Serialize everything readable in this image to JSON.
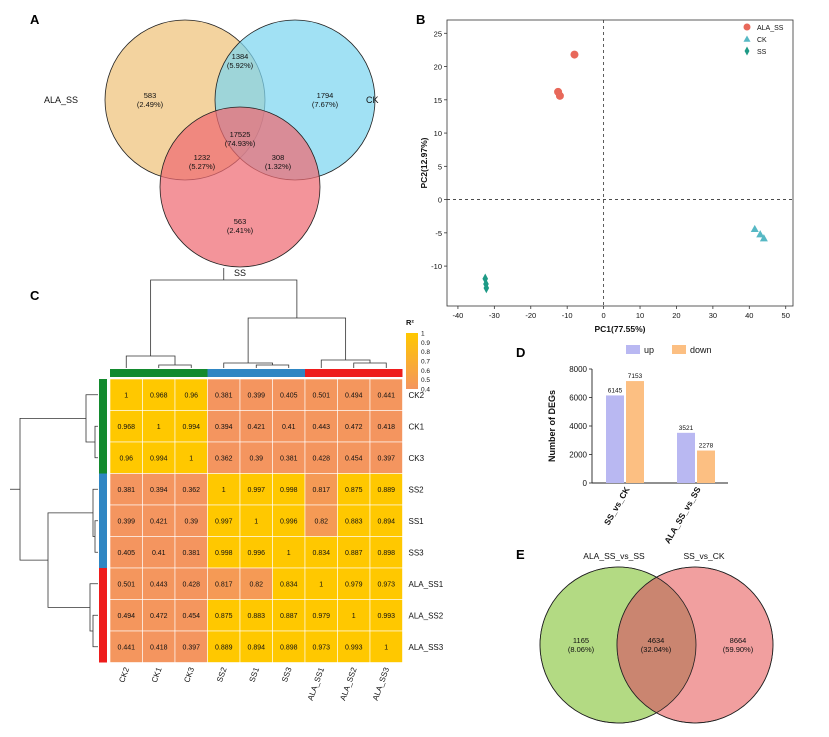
{
  "panels": {
    "A": "A",
    "B": "B",
    "C": "C",
    "D": "D",
    "E": "E"
  },
  "chart_data": [
    {
      "panel": "A",
      "type": "venn",
      "sets": [
        {
          "name": "ALA_SS",
          "color": "#EFC27A"
        },
        {
          "name": "CK",
          "color": "#7DD6F0"
        },
        {
          "name": "SS",
          "color": "#EE6B73"
        }
      ],
      "regions": [
        {
          "sets": [
            "ALA_SS"
          ],
          "count": "583",
          "pct": "(2.49%)"
        },
        {
          "sets": [
            "CK"
          ],
          "count": "1794",
          "pct": "(7.67%)"
        },
        {
          "sets": [
            "SS"
          ],
          "count": "563",
          "pct": "(2.41%)"
        },
        {
          "sets": [
            "ALA_SS",
            "CK"
          ],
          "count": "1384",
          "pct": "(5.92%)"
        },
        {
          "sets": [
            "ALA_SS",
            "SS"
          ],
          "count": "1232",
          "pct": "(5.27%)"
        },
        {
          "sets": [
            "CK",
            "SS"
          ],
          "count": "308",
          "pct": "(1.32%)"
        },
        {
          "sets": [
            "ALA_SS",
            "CK",
            "SS"
          ],
          "count": "17525",
          "pct": "(74.93%)"
        }
      ]
    },
    {
      "panel": "B",
      "type": "scatter",
      "xlabel": "PC1(77.55%)",
      "ylabel": "PC2(12.97%)",
      "xlim": [
        -43,
        52
      ],
      "ylim": [
        -16,
        27
      ],
      "xticks": [
        -40,
        -30,
        -20,
        -10,
        0,
        10,
        20,
        30,
        40,
        50
      ],
      "yticks": [
        -10,
        -5,
        0,
        5,
        10,
        15,
        20,
        25
      ],
      "legend_position": "top-right",
      "series": [
        {
          "name": "ALA_SS",
          "marker": "circle",
          "color": "#E8685A",
          "points": [
            [
              -8,
              21.8
            ],
            [
              -12.5,
              16.2
            ],
            [
              -12,
              15.6
            ]
          ]
        },
        {
          "name": "CK",
          "marker": "triangle",
          "color": "#56B8C4",
          "points": [
            [
              41.5,
              -4.4
            ],
            [
              43,
              -5.2
            ],
            [
              44,
              -5.8
            ]
          ]
        },
        {
          "name": "SS",
          "marker": "diamond",
          "color": "#1E9A86",
          "points": [
            [
              -32.5,
              -11.9
            ],
            [
              -32.3,
              -12.7
            ],
            [
              -32.2,
              -13.3
            ]
          ]
        }
      ]
    },
    {
      "panel": "C",
      "type": "heatmap",
      "legend_title": "R²",
      "colorbar_ticks": [
        "1",
        "0.9",
        "0.8",
        "0.7",
        "0.6",
        "0.5",
        "0.4"
      ],
      "color_low": "#F4955F",
      "color_high": "#FFC800",
      "cols": [
        "CK2",
        "CK1",
        "CK3",
        "SS2",
        "SS1",
        "SS3",
        "ALA_SS1",
        "ALA_SS2",
        "ALA_SS3"
      ],
      "rows": [
        "CK2",
        "CK1",
        "CK3",
        "SS2",
        "SS1",
        "SS3",
        "ALA_SS1",
        "ALA_SS2",
        "ALA_SS3"
      ],
      "group_colors": [
        "#138A2E",
        "#2F86C3",
        "#EE1C1C"
      ],
      "values": [
        [
          "1",
          "0.968",
          "0.96",
          "0.381",
          "0.399",
          "0.405",
          "0.501",
          "0.494",
          "0.441"
        ],
        [
          "0.968",
          "1",
          "0.994",
          "0.394",
          "0.421",
          "0.41",
          "0.443",
          "0.472",
          "0.418"
        ],
        [
          "0.96",
          "0.994",
          "1",
          "0.362",
          "0.39",
          "0.381",
          "0.428",
          "0.454",
          "0.397"
        ],
        [
          "0.381",
          "0.394",
          "0.362",
          "1",
          "0.997",
          "0.998",
          "0.817",
          "0.875",
          "0.889"
        ],
        [
          "0.399",
          "0.421",
          "0.39",
          "0.997",
          "1",
          "0.996",
          "0.82",
          "0.883",
          "0.894"
        ],
        [
          "0.405",
          "0.41",
          "0.381",
          "0.998",
          "0.996",
          "1",
          "0.834",
          "0.887",
          "0.898"
        ],
        [
          "0.501",
          "0.443",
          "0.428",
          "0.817",
          "0.82",
          "0.834",
          "1",
          "0.979",
          "0.973"
        ],
        [
          "0.494",
          "0.472",
          "0.454",
          "0.875",
          "0.883",
          "0.887",
          "0.979",
          "1",
          "0.993"
        ],
        [
          "0.441",
          "0.418",
          "0.397",
          "0.889",
          "0.894",
          "0.898",
          "0.973",
          "0.993",
          "1"
        ]
      ]
    },
    {
      "panel": "D",
      "type": "bar",
      "ylabel": "Number of DEGs",
      "ylim": [
        0,
        8000
      ],
      "yticks": [
        0,
        2000,
        4000,
        6000,
        8000
      ],
      "legend_position": "top",
      "categories": [
        "SS_vs_CK",
        "ALA_SS_vs_SS"
      ],
      "series": [
        {
          "name": "up",
          "color": "#B9B8F2",
          "values": [
            6145,
            3521
          ]
        },
        {
          "name": "down",
          "color": "#FCBF82",
          "values": [
            7153,
            2278
          ]
        }
      ]
    },
    {
      "panel": "E",
      "type": "venn",
      "sets": [
        {
          "name": "ALA_SS_vs_SS",
          "color": "#A6D46D"
        },
        {
          "name": "SS_vs_CK",
          "color": "#EE8E8E"
        }
      ],
      "regions": [
        {
          "sets": [
            "ALA_SS_vs_SS"
          ],
          "count": "1165",
          "pct": "(8.06%)"
        },
        {
          "sets": [
            "ALA_SS_vs_SS",
            "SS_vs_CK"
          ],
          "count": "4634",
          "pct": "(32.04%)"
        },
        {
          "sets": [
            "SS_vs_CK"
          ],
          "count": "8664",
          "pct": "(59.90%)"
        }
      ]
    }
  ]
}
